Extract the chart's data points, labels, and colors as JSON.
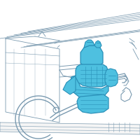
{
  "bg_color": "#ffffff",
  "line_color": "#7a9ab0",
  "highlight_fill": "#4ec0e0",
  "highlight_edge": "#2a90b8",
  "dark_line": "#5080a0",
  "figsize": [
    2.0,
    2.0
  ],
  "dpi": 100
}
